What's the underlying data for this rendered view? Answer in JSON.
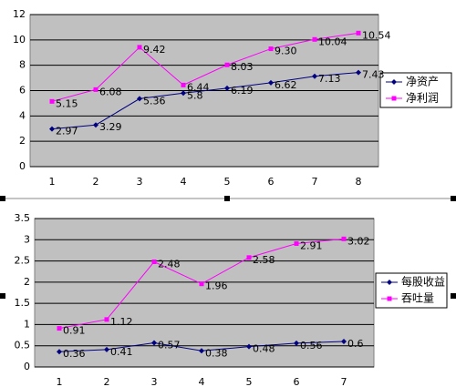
{
  "chart_data": [
    {
      "type": "line",
      "categories": [
        "1",
        "2",
        "3",
        "4",
        "5",
        "6",
        "7",
        "8"
      ],
      "ylim": [
        0,
        12
      ],
      "yticks": [
        0,
        2,
        4,
        6,
        8,
        10,
        12
      ],
      "grid": true,
      "legend": "right",
      "series": [
        {
          "name": "净资产",
          "color": "#000080",
          "marker": "diamond",
          "values": [
            2.97,
            3.29,
            5.36,
            5.8,
            6.19,
            6.62,
            7.13,
            7.43
          ]
        },
        {
          "name": "净利润",
          "color": "#ff00ff",
          "marker": "square",
          "values": [
            5.15,
            6.08,
            9.42,
            6.44,
            8.03,
            9.3,
            10.04,
            10.54
          ],
          "value_labels": [
            "5.15",
            "6.08",
            "9.42",
            "6.44",
            "8.03",
            "9.30",
            "10.04",
            "10.54"
          ]
        }
      ]
    },
    {
      "type": "line",
      "categories": [
        "1",
        "2",
        "3",
        "4",
        "5",
        "6",
        "7"
      ],
      "ylim": [
        0,
        3.5
      ],
      "yticks": [
        0,
        0.5,
        1,
        1.5,
        2,
        2.5,
        3,
        3.5
      ],
      "grid": true,
      "legend": "right",
      "series": [
        {
          "name": "每股收益",
          "color": "#000080",
          "marker": "diamond",
          "values": [
            0.36,
            0.41,
            0.57,
            0.38,
            0.48,
            0.56,
            0.6
          ]
        },
        {
          "name": "吞吐量",
          "color": "#ff00ff",
          "marker": "square",
          "values": [
            0.91,
            1.12,
            2.48,
            1.96,
            2.58,
            2.91,
            3.02
          ]
        }
      ]
    }
  ]
}
